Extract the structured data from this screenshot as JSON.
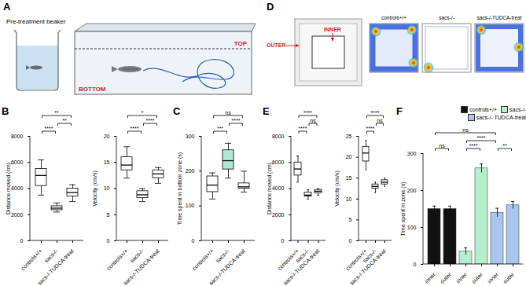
{
  "chart_data": [
    {
      "type": "box",
      "panel": "B",
      "ylabel": "Distance moved (cm)",
      "categories": [
        "controls+/+",
        "sacs-/-",
        "sacs-/-TUDCA-treat"
      ],
      "min": [
        3500,
        2200,
        3000
      ],
      "q1": [
        4200,
        2350,
        3400
      ],
      "median": [
        5000,
        2500,
        3700
      ],
      "q3": [
        5500,
        2650,
        4000
      ],
      "max": [
        6200,
        2900,
        4300
      ],
      "colors": [
        "#ffffff",
        "#ffffff",
        "#ffffff"
      ],
      "ylim": [
        0,
        8000
      ],
      "yticks": [
        0,
        2000,
        4000,
        6000,
        8000
      ],
      "comparisons": [
        {
          "groups": [
            0,
            1
          ],
          "label": "****"
        },
        {
          "groups": [
            1,
            2
          ],
          "label": "**"
        },
        {
          "groups": [
            0,
            2
          ],
          "label": "**"
        }
      ]
    },
    {
      "type": "box",
      "ylabel": "Velocity (cm/s)",
      "categories": [
        "controls+/+",
        "sacs-/-",
        "sacs-/-TUDCA-treat"
      ],
      "min": [
        12,
        7.5,
        11
      ],
      "q1": [
        13.5,
        8.2,
        12
      ],
      "median": [
        14.5,
        8.8,
        12.8
      ],
      "q3": [
        16,
        9.5,
        13.5
      ],
      "max": [
        18,
        10,
        14
      ],
      "colors": [
        "#ffffff",
        "#ffffff",
        "#ffffff"
      ],
      "ylim": [
        0,
        20
      ],
      "yticks": [
        0,
        5,
        10,
        15,
        20
      ],
      "comparisons": [
        {
          "groups": [
            0,
            1
          ],
          "label": "****"
        },
        {
          "groups": [
            1,
            2
          ],
          "label": "****"
        },
        {
          "groups": [
            0,
            2
          ],
          "label": "*"
        }
      ]
    },
    {
      "type": "box",
      "panel": "C",
      "ylabel": "Time spent in bottom zone (s)",
      "categories": [
        "controls+/+",
        "sacs-/-",
        "sacs-/-TUDCA-treat"
      ],
      "min": [
        120,
        180,
        140
      ],
      "q1": [
        140,
        205,
        150
      ],
      "median": [
        160,
        230,
        155
      ],
      "q3": [
        185,
        260,
        165
      ],
      "max": [
        195,
        280,
        200
      ],
      "colors": [
        "#ffffff",
        "#b2e8d8",
        "#ffffff"
      ],
      "ylim": [
        0,
        300
      ],
      "yticks": [
        0,
        100,
        200,
        300
      ],
      "comparisons": [
        {
          "groups": [
            0,
            1
          ],
          "label": "***"
        },
        {
          "groups": [
            1,
            2
          ],
          "label": "****"
        },
        {
          "groups": [
            0,
            2
          ],
          "label": "ns"
        }
      ]
    },
    {
      "type": "box",
      "panel": "E",
      "ylabel": "Distance moved (cm)",
      "categories": [
        "controls+/+",
        "sacs-/-",
        "sacs-/-TUDCA-treat"
      ],
      "min": [
        4500,
        3200,
        3500
      ],
      "q1": [
        5000,
        3400,
        3650
      ],
      "median": [
        5500,
        3500,
        3800
      ],
      "q3": [
        6000,
        3700,
        3900
      ],
      "max": [
        6500,
        3900,
        4000
      ],
      "colors": [
        "#ffffff",
        "#ffffff",
        "#ffffff"
      ],
      "ylim": [
        0,
        8000
      ],
      "yticks": [
        0,
        2000,
        4000,
        6000,
        8000
      ],
      "comparisons": [
        {
          "groups": [
            0,
            1
          ],
          "label": "****"
        },
        {
          "groups": [
            1,
            2
          ],
          "label": "ns"
        },
        {
          "groups": [
            0,
            2
          ],
          "label": "****"
        }
      ]
    },
    {
      "type": "box",
      "ylabel": "Velocity (cm/s)",
      "categories": [
        "controls+/+",
        "sacs-/-",
        "sacs-/-TUDCA-treat"
      ],
      "min": [
        17,
        11.5,
        13
      ],
      "q1": [
        19,
        12.5,
        13.5
      ],
      "median": [
        21,
        13,
        14
      ],
      "q3": [
        22.5,
        13.5,
        14.5
      ],
      "max": [
        24,
        14,
        15
      ],
      "colors": [
        "#ffffff",
        "#ffffff",
        "#ffffff"
      ],
      "ylim": [
        0,
        25
      ],
      "yticks": [
        0,
        5,
        10,
        15,
        20,
        25
      ],
      "comparisons": [
        {
          "groups": [
            0,
            1
          ],
          "label": "****"
        },
        {
          "groups": [
            1,
            2
          ],
          "label": "ns"
        },
        {
          "groups": [
            0,
            2
          ],
          "label": "****"
        }
      ]
    },
    {
      "type": "bar",
      "panel": "F",
      "ylabel": "Time spent in zone (s)",
      "categories": [
        "inner",
        "outer",
        "inner",
        "outer",
        "inner",
        "outer"
      ],
      "series": [
        {
          "name": "controls+/+",
          "color": "#111111",
          "values": [
            150,
            150,
            null,
            null,
            null,
            null
          ],
          "errors": [
            8,
            8,
            null,
            null,
            null,
            null
          ]
        },
        {
          "name": "sacs-/-",
          "color": "#b5efc9",
          "values": [
            null,
            null,
            35,
            260,
            null,
            null
          ],
          "errors": [
            null,
            null,
            10,
            12,
            null,
            null
          ]
        },
        {
          "name": "sacs-/- TUDCA-treat",
          "color": "#a9c6ee",
          "values": [
            null,
            null,
            null,
            null,
            140,
            160
          ],
          "errors": [
            null,
            null,
            null,
            null,
            12,
            10
          ]
        }
      ],
      "ylim": [
        0,
        300
      ],
      "yticks": [
        0,
        100,
        200,
        300
      ],
      "legend": "top-right",
      "comparisons": [
        {
          "groups": [
            0,
            1
          ],
          "label": "ns"
        },
        {
          "groups": [
            2,
            3
          ],
          "label": "****"
        },
        {
          "groups": [
            4,
            5
          ],
          "label": "**"
        },
        {
          "groups": [
            2,
            4
          ],
          "label": "****"
        },
        {
          "groups": [
            0,
            4
          ],
          "label": "ns"
        }
      ]
    }
  ],
  "diagrams": {
    "A": {
      "panel": "A",
      "beaker_label": "Pre-treatment beaker",
      "top_label": "TOP",
      "bottom_label": "BOTTOM"
    },
    "D": {
      "panel": "D",
      "outer_label": "OUTER",
      "inner_label": "INNER",
      "heatmaps": [
        {
          "label": "controls+/+"
        },
        {
          "label": "sacs-/-"
        },
        {
          "label": "sacs-/-TUDCA-treat"
        }
      ]
    }
  }
}
